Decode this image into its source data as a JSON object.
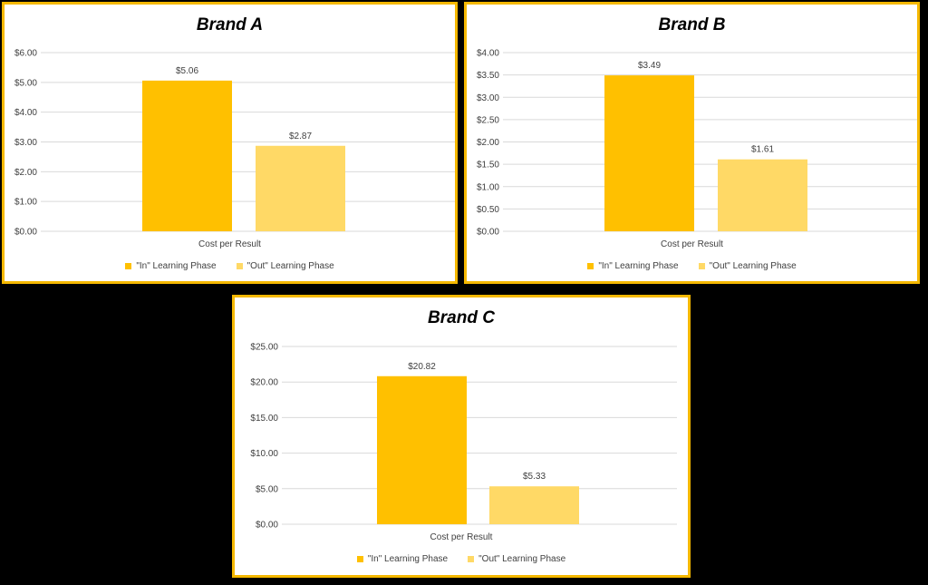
{
  "chart_data": [
    {
      "type": "bar",
      "title": "Brand A",
      "categories": [
        "Cost per Result"
      ],
      "series": [
        {
          "name": "\"In\" Learning Phase",
          "values": [
            5.06
          ],
          "label": "$5.06",
          "color": "#ffc000"
        },
        {
          "name": "\"Out\" Learning Phase",
          "values": [
            2.87
          ],
          "label": "$2.87",
          "color": "#ffd966"
        }
      ],
      "ylim": [
        0,
        6
      ],
      "yticks": [
        "$0.00",
        "$1.00",
        "$2.00",
        "$3.00",
        "$4.00",
        "$5.00",
        "$6.00"
      ],
      "grid": true,
      "legend": "bottom"
    },
    {
      "type": "bar",
      "title": "Brand B",
      "categories": [
        "Cost per Result"
      ],
      "series": [
        {
          "name": "\"In\" Learning Phase",
          "values": [
            3.49
          ],
          "label": "$3.49",
          "color": "#ffc000"
        },
        {
          "name": "\"Out\" Learning Phase",
          "values": [
            1.61
          ],
          "label": "$1.61",
          "color": "#ffd966"
        }
      ],
      "ylim": [
        0,
        4
      ],
      "yticks": [
        "$0.00",
        "$0.50",
        "$1.00",
        "$1.50",
        "$2.00",
        "$2.50",
        "$3.00",
        "$3.50",
        "$4.00"
      ],
      "grid": true,
      "legend": "bottom"
    },
    {
      "type": "bar",
      "title": "Brand C",
      "categories": [
        "Cost per Result"
      ],
      "series": [
        {
          "name": "\"In\" Learning Phase",
          "values": [
            20.82
          ],
          "label": "$20.82",
          "color": "#ffc000"
        },
        {
          "name": "\"Out\" Learning Phase",
          "values": [
            5.33
          ],
          "label": "$5.33",
          "color": "#ffd966"
        }
      ],
      "ylim": [
        0,
        25
      ],
      "yticks": [
        "$0.00",
        "$5.00",
        "$10.00",
        "$15.00",
        "$20.00",
        "$25.00"
      ],
      "grid": true,
      "legend": "bottom"
    }
  ]
}
